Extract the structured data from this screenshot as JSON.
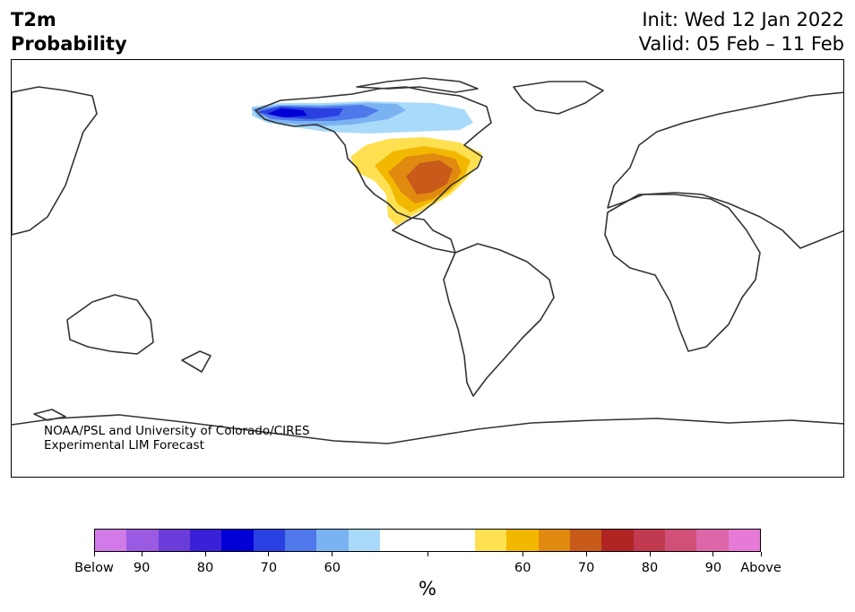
{
  "header": {
    "variable": "T2m",
    "product": "Probability",
    "init": "Init: Wed 12 Jan 2022",
    "valid": "Valid: 05 Feb – 11 Feb"
  },
  "credit": {
    "line1": "NOAA/PSL and University of Colorado/CIRES",
    "line2": "Experimental LIM Forecast"
  },
  "map": {
    "projection": "equirectangular, Pacific-centered",
    "coastline_color": "#333333",
    "anomaly_regions": [
      {
        "region": "Alaska / western Canada",
        "category": "below-normal",
        "peak_probability": 80
      },
      {
        "region": "Central and eastern United States",
        "category": "above-normal",
        "peak_probability": 70
      }
    ]
  },
  "colorbar": {
    "unit_label": "%",
    "tick_labels": [
      "Below",
      "90",
      "80",
      "70",
      "60",
      "",
      "60",
      "70",
      "80",
      "90",
      "Above"
    ],
    "below_colors": [
      "#d27ae8",
      "#9b5ae2",
      "#6a3ddb",
      "#3a20d6",
      "#0000d6",
      "#2a40e2",
      "#4f78ea",
      "#7ab2f2",
      "#a9dafa"
    ],
    "neutral_color": "#ffffff",
    "above_colors": [
      "#ffe050",
      "#f2b800",
      "#e08a10",
      "#c85a1a",
      "#b02424",
      "#c23a50",
      "#d05078",
      "#dc66a8",
      "#e67ad6"
    ]
  }
}
